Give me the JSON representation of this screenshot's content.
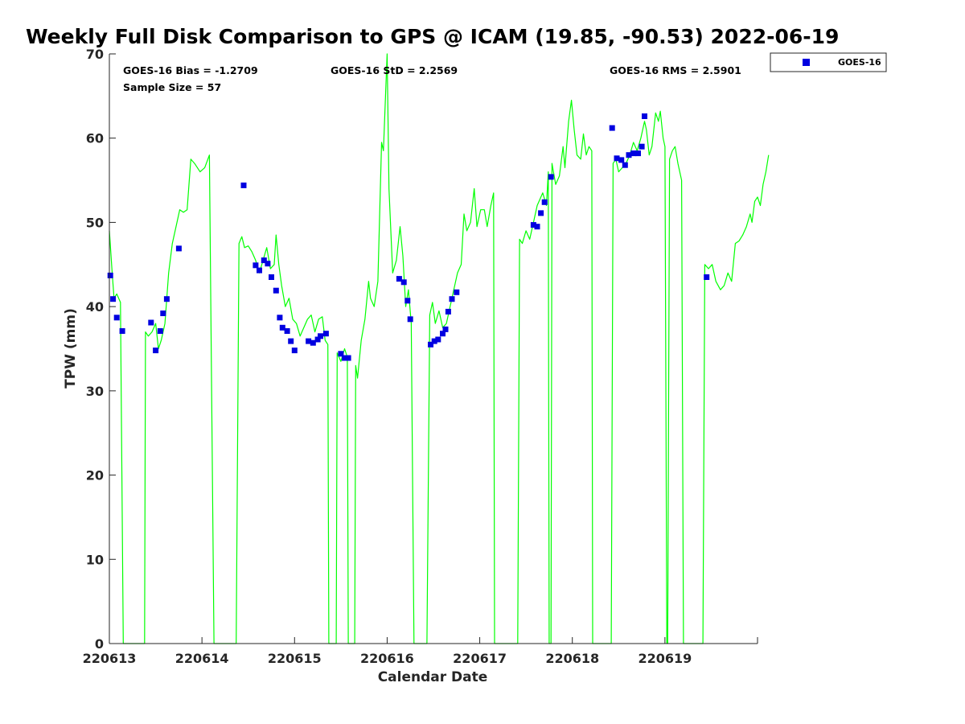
{
  "chart_data": {
    "type": "line",
    "title": "Weekly Full Disk Comparison to GPS @ ICAM (19.85, -90.53) 2022-06-19",
    "xlabel": "Calendar Date",
    "ylabel": "TPW (mm)",
    "xlim": [
      0,
      7
    ],
    "ylim": [
      0,
      70
    ],
    "x_tick_labels": [
      "220613",
      "220614",
      "220615",
      "220616",
      "220617",
      "220618",
      "220619"
    ],
    "y_ticks": [
      0,
      10,
      20,
      30,
      40,
      50,
      60,
      70
    ],
    "legend": {
      "placement": "top-right-outside",
      "entries": [
        "GOES-16"
      ]
    },
    "stats": {
      "bias": "GOES-16 Bias = -1.2709",
      "std": "GOES-16 StD = 2.2569",
      "rms": "GOES-16 RMS = 2.5901",
      "sample": "Sample Size = 57"
    },
    "series": [
      {
        "kind": "line",
        "color": "#00ff00",
        "points": [
          [
            0.0,
            49.0
          ],
          [
            0.03,
            44.0
          ],
          [
            0.05,
            41.0
          ],
          [
            0.08,
            41.5
          ],
          [
            0.12,
            40.5
          ],
          [
            0.15,
            0
          ],
          [
            0.38,
            0
          ],
          [
            0.39,
            37.0
          ],
          [
            0.42,
            36.5
          ],
          [
            0.46,
            37.0
          ],
          [
            0.5,
            38.0
          ],
          [
            0.53,
            35.0
          ],
          [
            0.56,
            36.0
          ],
          [
            0.6,
            38.0
          ],
          [
            0.64,
            44.0
          ],
          [
            0.68,
            47.5
          ],
          [
            0.72,
            49.5
          ],
          [
            0.76,
            51.5
          ],
          [
            0.8,
            51.2
          ],
          [
            0.84,
            51.5
          ],
          [
            0.88,
            57.5
          ],
          [
            0.92,
            57.0
          ],
          [
            0.98,
            56.0
          ],
          [
            1.03,
            56.5
          ],
          [
            1.08,
            58.0
          ],
          [
            1.13,
            0
          ],
          [
            1.37,
            0
          ],
          [
            1.4,
            47.5
          ],
          [
            1.43,
            48.3
          ],
          [
            1.46,
            47.0
          ],
          [
            1.5,
            47.2
          ],
          [
            1.54,
            46.5
          ],
          [
            1.58,
            45.5
          ],
          [
            1.62,
            44.0
          ],
          [
            1.66,
            45.5
          ],
          [
            1.7,
            47.0
          ],
          [
            1.74,
            44.5
          ],
          [
            1.78,
            45.0
          ],
          [
            1.8,
            48.5
          ],
          [
            1.83,
            45.0
          ],
          [
            1.86,
            42.5
          ],
          [
            1.9,
            40.0
          ],
          [
            1.94,
            41.0
          ],
          [
            1.98,
            38.5
          ],
          [
            2.02,
            38.0
          ],
          [
            2.06,
            36.5
          ],
          [
            2.1,
            37.5
          ],
          [
            2.14,
            38.5
          ],
          [
            2.18,
            39.0
          ],
          [
            2.22,
            37.0
          ],
          [
            2.26,
            38.5
          ],
          [
            2.3,
            38.8
          ],
          [
            2.33,
            36.0
          ],
          [
            2.36,
            35.5
          ],
          [
            2.37,
            0
          ],
          [
            2.45,
            0
          ],
          [
            2.46,
            34.5
          ],
          [
            2.5,
            33.5
          ],
          [
            2.54,
            35.0
          ],
          [
            2.57,
            34.0
          ],
          [
            2.58,
            0
          ],
          [
            2.65,
            0
          ],
          [
            2.66,
            33.0
          ],
          [
            2.68,
            31.5
          ],
          [
            2.72,
            36.0
          ],
          [
            2.76,
            38.5
          ],
          [
            2.8,
            43.0
          ],
          [
            2.82,
            41.0
          ],
          [
            2.86,
            40.0
          ],
          [
            2.9,
            43.0
          ],
          [
            2.94,
            59.5
          ],
          [
            2.96,
            58.5
          ],
          [
            3.0,
            70.0
          ],
          [
            3.02,
            54.0
          ],
          [
            3.06,
            44.0
          ],
          [
            3.1,
            45.5
          ],
          [
            3.14,
            49.5
          ],
          [
            3.17,
            46.0
          ],
          [
            3.2,
            40.0
          ],
          [
            3.23,
            42.0
          ],
          [
            3.26,
            38.0
          ],
          [
            3.29,
            0
          ],
          [
            3.43,
            0
          ],
          [
            3.46,
            39.0
          ],
          [
            3.49,
            40.5
          ],
          [
            3.52,
            38.0
          ],
          [
            3.56,
            39.5
          ],
          [
            3.6,
            37.5
          ],
          [
            3.64,
            38.0
          ],
          [
            3.68,
            40.0
          ],
          [
            3.72,
            42.0
          ],
          [
            3.76,
            44.0
          ],
          [
            3.8,
            45.0
          ],
          [
            3.83,
            51.0
          ],
          [
            3.86,
            49.0
          ],
          [
            3.9,
            50.0
          ],
          [
            3.94,
            54.0
          ],
          [
            3.97,
            49.5
          ],
          [
            4.01,
            51.5
          ],
          [
            4.05,
            51.5
          ],
          [
            4.08,
            49.5
          ],
          [
            4.12,
            52.0
          ],
          [
            4.15,
            53.5
          ],
          [
            4.16,
            0
          ],
          [
            4.41,
            0
          ],
          [
            4.43,
            48.0
          ],
          [
            4.46,
            47.5
          ],
          [
            4.5,
            49.0
          ],
          [
            4.54,
            48.0
          ],
          [
            4.58,
            50.0
          ],
          [
            4.62,
            52.0
          ],
          [
            4.66,
            53.0
          ],
          [
            4.68,
            53.5
          ],
          [
            4.72,
            52.0
          ],
          [
            4.74,
            56.0
          ],
          [
            4.75,
            0
          ],
          [
            4.77,
            0
          ],
          [
            4.78,
            57.0
          ],
          [
            4.82,
            54.5
          ],
          [
            4.86,
            55.5
          ],
          [
            4.9,
            59.0
          ],
          [
            4.92,
            56.5
          ],
          [
            4.96,
            62.0
          ],
          [
            4.99,
            64.5
          ],
          [
            5.02,
            61.0
          ],
          [
            5.05,
            58.0
          ],
          [
            5.09,
            57.5
          ],
          [
            5.12,
            60.5
          ],
          [
            5.15,
            58.0
          ],
          [
            5.18,
            59.0
          ],
          [
            5.21,
            58.5
          ],
          [
            5.22,
            0
          ],
          [
            5.42,
            0
          ],
          [
            5.44,
            57.0
          ],
          [
            5.47,
            57.5
          ],
          [
            5.5,
            56.0
          ],
          [
            5.54,
            56.5
          ],
          [
            5.58,
            57.0
          ],
          [
            5.62,
            58.0
          ],
          [
            5.66,
            59.5
          ],
          [
            5.7,
            58.5
          ],
          [
            5.74,
            60.0
          ],
          [
            5.78,
            62.0
          ],
          [
            5.8,
            61.0
          ],
          [
            5.83,
            58.0
          ],
          [
            5.86,
            59.0
          ],
          [
            5.9,
            63.0
          ],
          [
            5.93,
            62.0
          ],
          [
            5.95,
            63.2
          ],
          [
            5.98,
            60.0
          ],
          [
            6.0,
            59.0
          ],
          [
            6.02,
            0
          ],
          [
            6.03,
            0
          ],
          [
            6.05,
            57.5
          ],
          [
            6.08,
            58.5
          ],
          [
            6.11,
            59.0
          ],
          [
            6.14,
            57.0
          ],
          [
            6.18,
            55.0
          ],
          [
            6.2,
            0
          ],
          [
            6.41,
            0
          ],
          [
            6.43,
            45.0
          ],
          [
            6.47,
            44.5
          ],
          [
            6.51,
            45.0
          ],
          [
            6.55,
            43.0
          ],
          [
            6.6,
            42.0
          ],
          [
            6.64,
            42.5
          ],
          [
            6.68,
            44.0
          ],
          [
            6.72,
            43.0
          ],
          [
            6.76,
            47.5
          ],
          [
            6.8,
            47.8
          ],
          [
            6.84,
            48.5
          ],
          [
            6.88,
            49.5
          ],
          [
            6.92,
            51.0
          ],
          [
            6.94,
            50.0
          ],
          [
            6.97,
            52.5
          ],
          [
            7.0,
            53.0
          ],
          [
            7.03,
            52.0
          ],
          [
            7.06,
            54.5
          ],
          [
            7.09,
            56.0
          ],
          [
            7.12,
            58.0
          ]
        ]
      },
      {
        "name": "GOES-16",
        "kind": "scatter",
        "color": "#0000e0",
        "points": [
          [
            0.01,
            43.7
          ],
          [
            0.04,
            40.9
          ],
          [
            0.08,
            38.7
          ],
          [
            0.14,
            37.1
          ],
          [
            0.45,
            38.1
          ],
          [
            0.5,
            34.8
          ],
          [
            0.55,
            37.1
          ],
          [
            0.58,
            39.2
          ],
          [
            0.62,
            40.9
          ],
          [
            0.75,
            46.9
          ],
          [
            1.45,
            54.4
          ],
          [
            1.58,
            44.9
          ],
          [
            1.62,
            44.3
          ],
          [
            1.67,
            45.5
          ],
          [
            1.71,
            45.1
          ],
          [
            1.75,
            43.5
          ],
          [
            1.8,
            41.9
          ],
          [
            1.84,
            38.7
          ],
          [
            1.87,
            37.5
          ],
          [
            1.92,
            37.1
          ],
          [
            1.96,
            35.9
          ],
          [
            2.0,
            34.8
          ],
          [
            2.15,
            35.9
          ],
          [
            2.2,
            35.7
          ],
          [
            2.25,
            36.1
          ],
          [
            2.28,
            36.5
          ],
          [
            2.34,
            36.8
          ],
          [
            2.5,
            34.4
          ],
          [
            2.54,
            33.9
          ],
          [
            2.58,
            33.9
          ],
          [
            3.13,
            43.3
          ],
          [
            3.18,
            42.9
          ],
          [
            3.22,
            40.7
          ],
          [
            3.25,
            38.5
          ],
          [
            3.47,
            35.5
          ],
          [
            3.51,
            35.9
          ],
          [
            3.55,
            36.1
          ],
          [
            3.6,
            36.8
          ],
          [
            3.63,
            37.3
          ],
          [
            3.66,
            39.4
          ],
          [
            3.7,
            40.9
          ],
          [
            3.75,
            41.7
          ],
          [
            4.58,
            49.7
          ],
          [
            4.62,
            49.5
          ],
          [
            4.66,
            51.1
          ],
          [
            4.7,
            52.4
          ],
          [
            4.77,
            55.4
          ],
          [
            5.43,
            61.2
          ],
          [
            5.48,
            57.6
          ],
          [
            5.53,
            57.4
          ],
          [
            5.57,
            56.8
          ],
          [
            5.61,
            58.0
          ],
          [
            5.66,
            58.2
          ],
          [
            5.71,
            58.2
          ],
          [
            5.75,
            59.0
          ],
          [
            5.78,
            62.6
          ],
          [
            6.45,
            43.5
          ]
        ]
      }
    ]
  }
}
